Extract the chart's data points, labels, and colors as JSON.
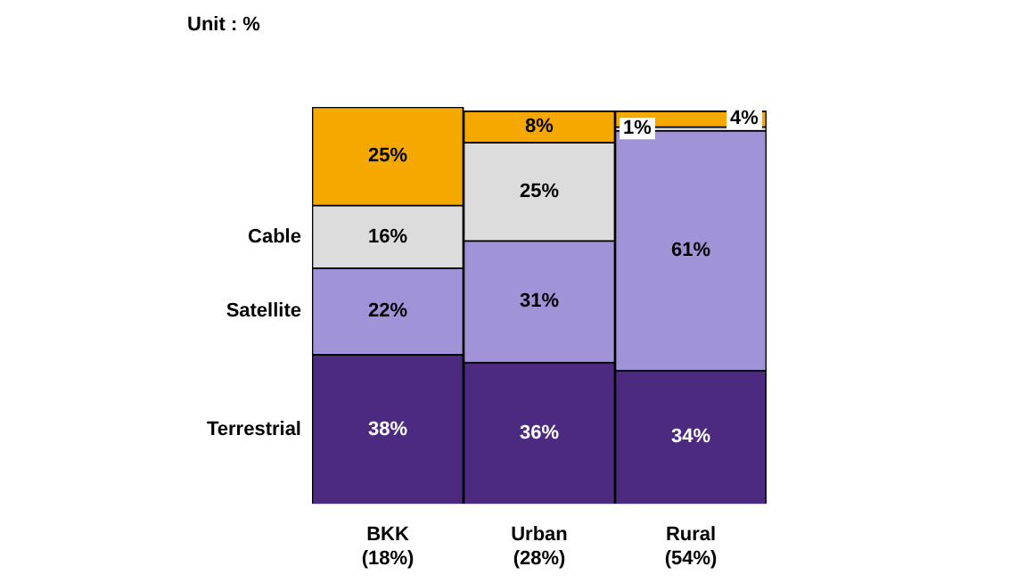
{
  "chart_data": {
    "type": "bar",
    "stacked": true,
    "title": "Unit : %",
    "categories": [
      "BKK\n(18%)",
      "Urban\n(28%)",
      "Rural\n(54%)"
    ],
    "series": [
      {
        "name": "Terrestrial",
        "color": "#4b2a7f",
        "values": [
          38,
          36,
          34
        ],
        "value_labels": [
          "38%",
          "36%",
          "34%"
        ]
      },
      {
        "name": "Satellite",
        "color": "#a093d8",
        "values": [
          22,
          31,
          61
        ],
        "value_labels": [
          "22%",
          "31%",
          "61%"
        ]
      },
      {
        "name": "Cable",
        "color": "#dcdcdc",
        "values": [
          16,
          25,
          1
        ],
        "value_labels": [
          "16%",
          "25%",
          "1%"
        ]
      },
      {
        "color": "#f5a800",
        "values": [
          25,
          8,
          4
        ],
        "value_labels": [
          "25%",
          "8%",
          "4%"
        ]
      }
    ],
    "legend": false,
    "grid": false
  }
}
